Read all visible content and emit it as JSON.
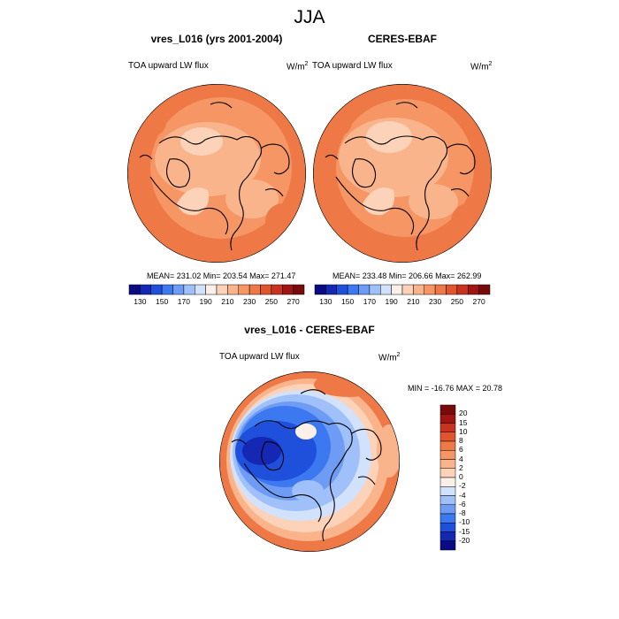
{
  "title": "JJA",
  "panels": [
    {
      "title": "vres_L016 (yrs 2001-2004)",
      "variable": "TOA upward LW flux",
      "units": "W/m",
      "units_sup": "2",
      "stats": "MEAN= 231.02  Min= 203.54  Max= 271.47"
    },
    {
      "title": "CERES-EBAF",
      "variable": "TOA upward LW flux",
      "units": "W/m",
      "units_sup": "2",
      "stats": "MEAN= 233.48  Min= 206.66  Max= 262.99"
    },
    {
      "title": "vres_L016 - CERES-EBAF",
      "variable": "TOA upward LW flux",
      "units": "W/m",
      "units_sup": "2",
      "stats": "MIN = -16.76 MAX =  20.78"
    }
  ],
  "colorbar_abs": {
    "colors": [
      "#0a0a82",
      "#1428b4",
      "#1e50dc",
      "#3c78f0",
      "#6e9cf5",
      "#a0c0fa",
      "#d2e2fc",
      "#fbf0e8",
      "#fcd2b8",
      "#fab48c",
      "#f59664",
      "#ee7846",
      "#e0552d",
      "#c8321e",
      "#a01414",
      "#780a0a"
    ],
    "labels": [
      "130",
      "150",
      "170",
      "190",
      "210",
      "230",
      "250",
      "270"
    ]
  },
  "colorbar_diff": {
    "colors": [
      "#0a0a82",
      "#1428b4",
      "#1e50dc",
      "#3c78f0",
      "#6e9cf5",
      "#a0c0fa",
      "#d2e2fc",
      "#fbf0e8",
      "#fcd2b8",
      "#fab48c",
      "#f59664",
      "#ee7846",
      "#e0552d",
      "#c8321e",
      "#a01414",
      "#780a0a"
    ],
    "labels": [
      "-20",
      "-15",
      "-10",
      "-8",
      "-6",
      "-4",
      "-2",
      "0",
      "2",
      "4",
      "6",
      "8",
      "10",
      "15",
      "20"
    ]
  },
  "map_colors": {
    "abs_outer": "#ee7846",
    "abs_mid": "#f59664",
    "abs_inner": "#fab48c",
    "abs_low": "#fcd2b8",
    "diff_high": "#ee7846",
    "diff_pos": "#fab48c",
    "diff_light": "#fcd2b8",
    "diff_neutral": "#fbf0e8",
    "diff_neg1": "#d2e2fc",
    "diff_neg2": "#a0c0fa",
    "diff_neg3": "#6e9cf5",
    "diff_neg4": "#3c78f0",
    "diff_neg5": "#1e50dc",
    "diff_neg6": "#1428b4"
  }
}
